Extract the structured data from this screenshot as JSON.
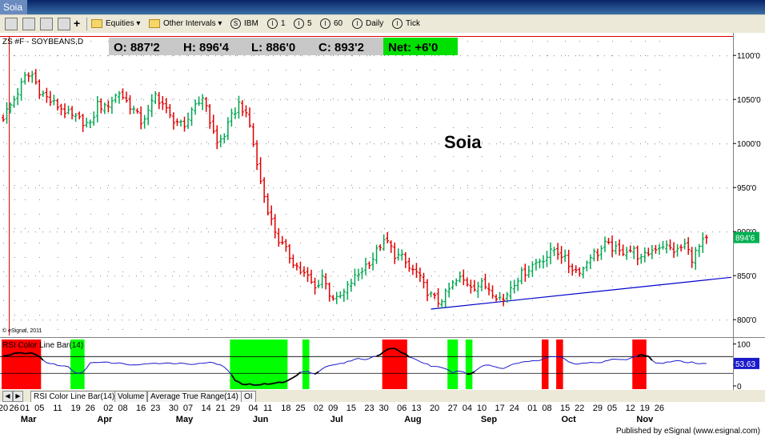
{
  "window": {
    "title": "Soia"
  },
  "toolbar": {
    "equities_label": "Equities",
    "other_intervals_label": "Other Intervals",
    "symbol_label": "IBM",
    "interval_1": "1",
    "interval_5": "5",
    "interval_60": "60",
    "daily_label": "Daily",
    "tick_label": "Tick",
    "symbol_icon_letter": "S",
    "interval_icon_letter": "I"
  },
  "chart_data": [
    {
      "type": "candlestick",
      "symbol_label": "ZS #F - SOYBEANS,D",
      "annotation": "Soia",
      "ohlc_box": {
        "open": "O:  887'2",
        "high": "H:  896'4",
        "low": "L:  886'0",
        "close": "C:  893'2",
        "net": "Net:  +6'0"
      },
      "last_price_label": "894'6",
      "copyright": "© eSignal, 2011",
      "y_ticks": [
        {
          "value": 1100,
          "label": "1100'0"
        },
        {
          "value": 1050,
          "label": "1050'0"
        },
        {
          "value": 1000,
          "label": "1000'0"
        },
        {
          "value": 950,
          "label": "950'0"
        },
        {
          "value": 900,
          "label": "900'0"
        },
        {
          "value": 850,
          "label": "850'0"
        },
        {
          "value": 800,
          "label": "800'0"
        }
      ],
      "ylim": [
        782,
        1122
      ],
      "grid": true,
      "trendline": {
        "from": {
          "bar": 118,
          "value": 812
        },
        "to": {
          "bar": 168,
          "value": 849
        }
      },
      "anchors": [
        [
          0,
          1030
        ],
        [
          3,
          1050
        ],
        [
          6,
          1075
        ],
        [
          8,
          1078
        ],
        [
          10,
          1060
        ],
        [
          13,
          1048
        ],
        [
          16,
          1040
        ],
        [
          19,
          1030
        ],
        [
          22,
          1025
        ],
        [
          24,
          1020
        ],
        [
          26,
          1045
        ],
        [
          28,
          1040
        ],
        [
          30,
          1050
        ],
        [
          32,
          1058
        ],
        [
          34,
          1048
        ],
        [
          36,
          1038
        ],
        [
          38,
          1025
        ],
        [
          40,
          1035
        ],
        [
          42,
          1055
        ],
        [
          44,
          1045
        ],
        [
          46,
          1030
        ],
        [
          48,
          1025
        ],
        [
          50,
          1015
        ],
        [
          52,
          1040
        ],
        [
          54,
          1050
        ],
        [
          56,
          1045
        ],
        [
          57,
          1025
        ],
        [
          59,
          1000
        ],
        [
          61,
          1010
        ],
        [
          63,
          1030
        ],
        [
          65,
          1045
        ],
        [
          66,
          1040
        ],
        [
          68,
          1020
        ],
        [
          69,
          1000
        ],
        [
          70,
          975
        ],
        [
          72,
          940
        ],
        [
          74,
          912
        ],
        [
          76,
          890
        ],
        [
          78,
          878
        ],
        [
          80,
          866
        ],
        [
          82,
          855
        ],
        [
          84,
          848
        ],
        [
          86,
          835
        ],
        [
          88,
          850
        ],
        [
          90,
          830
        ],
        [
          92,
          822
        ],
        [
          94,
          830
        ],
        [
          96,
          843
        ],
        [
          98,
          852
        ],
        [
          100,
          862
        ],
        [
          102,
          870
        ],
        [
          104,
          885
        ],
        [
          106,
          888
        ],
        [
          108,
          874
        ],
        [
          110,
          870
        ],
        [
          112,
          858
        ],
        [
          114,
          853
        ],
        [
          116,
          838
        ],
        [
          118,
          827
        ],
        [
          120,
          820
        ],
        [
          122,
          828
        ],
        [
          124,
          840
        ],
        [
          126,
          846
        ],
        [
          128,
          842
        ],
        [
          130,
          838
        ],
        [
          132,
          840
        ],
        [
          134,
          836
        ],
        [
          136,
          828
        ],
        [
          138,
          822
        ],
        [
          140,
          838
        ],
        [
          142,
          848
        ],
        [
          144,
          855
        ],
        [
          146,
          862
        ],
        [
          148,
          868
        ],
        [
          150,
          872
        ],
        [
          152,
          880
        ],
        [
          154,
          874
        ],
        [
          156,
          862
        ],
        [
          158,
          856
        ],
        [
          160,
          858
        ],
        [
          162,
          874
        ],
        [
          164,
          876
        ],
        [
          166,
          885
        ],
        [
          168,
          882
        ],
        [
          170,
          876
        ],
        [
          172,
          880
        ],
        [
          174,
          878
        ],
        [
          176,
          868
        ],
        [
          178,
          876
        ],
        [
          180,
          882
        ],
        [
          182,
          885
        ],
        [
          184,
          880
        ],
        [
          186,
          878
        ],
        [
          188,
          885
        ],
        [
          190,
          870
        ],
        [
          192,
          882
        ],
        [
          194,
          893
        ]
      ]
    },
    {
      "type": "line",
      "title": "RSI Color Line Bar(14)",
      "ylim": [
        0,
        105
      ],
      "y_ticks": [
        {
          "value": 100,
          "label": "100"
        },
        {
          "value": 50,
          "label": "50"
        },
        {
          "value": 0,
          "label": "0"
        }
      ],
      "levels": [
        70,
        30
      ],
      "last_value_label": "53.63",
      "colored_zones": [
        {
          "from": 0,
          "to": 10,
          "color": "#ff0000"
        },
        {
          "from": 19,
          "to": 22,
          "color": "#00ff00"
        },
        {
          "from": 63,
          "to": 78,
          "color": "#00ff00"
        },
        {
          "from": 83,
          "to": 84,
          "color": "#00ff00"
        },
        {
          "from": 105,
          "to": 111,
          "color": "#ff0000"
        },
        {
          "from": 123,
          "to": 125,
          "color": "#00ff00"
        },
        {
          "from": 128,
          "to": 129,
          "color": "#00ff00"
        },
        {
          "from": 149,
          "to": 150,
          "color": "#ff0000"
        },
        {
          "from": 153,
          "to": 154,
          "color": "#ff0000"
        },
        {
          "from": 174,
          "to": 177,
          "color": "#ff0000"
        }
      ],
      "anchors": [
        [
          0,
          72
        ],
        [
          4,
          78
        ],
        [
          8,
          78
        ],
        [
          10,
          70
        ],
        [
          12,
          55
        ],
        [
          14,
          52
        ],
        [
          16,
          48
        ],
        [
          18,
          45
        ],
        [
          20,
          30
        ],
        [
          22,
          33
        ],
        [
          24,
          55
        ],
        [
          28,
          56
        ],
        [
          32,
          54
        ],
        [
          36,
          50
        ],
        [
          40,
          52
        ],
        [
          44,
          55
        ],
        [
          48,
          54
        ],
        [
          52,
          52
        ],
        [
          56,
          56
        ],
        [
          58,
          54
        ],
        [
          60,
          50
        ],
        [
          62,
          38
        ],
        [
          64,
          12
        ],
        [
          66,
          5
        ],
        [
          70,
          3
        ],
        [
          74,
          6
        ],
        [
          76,
          8
        ],
        [
          78,
          10
        ],
        [
          80,
          20
        ],
        [
          82,
          32
        ],
        [
          84,
          36
        ],
        [
          86,
          28
        ],
        [
          88,
          42
        ],
        [
          90,
          48
        ],
        [
          92,
          52
        ],
        [
          94,
          55
        ],
        [
          96,
          60
        ],
        [
          98,
          66
        ],
        [
          100,
          63
        ],
        [
          102,
          70
        ],
        [
          104,
          75
        ],
        [
          106,
          86
        ],
        [
          108,
          90
        ],
        [
          110,
          80
        ],
        [
          112,
          70
        ],
        [
          114,
          62
        ],
        [
          116,
          55
        ],
        [
          118,
          48
        ],
        [
          120,
          45
        ],
        [
          122,
          40
        ],
        [
          124,
          32
        ],
        [
          126,
          36
        ],
        [
          128,
          28
        ],
        [
          130,
          33
        ],
        [
          132,
          48
        ],
        [
          134,
          50
        ],
        [
          136,
          45
        ],
        [
          138,
          42
        ],
        [
          140,
          50
        ],
        [
          142,
          55
        ],
        [
          144,
          58
        ],
        [
          146,
          60
        ],
        [
          148,
          62
        ],
        [
          150,
          68
        ],
        [
          152,
          70
        ],
        [
          154,
          68
        ],
        [
          156,
          58
        ],
        [
          158,
          52
        ],
        [
          160,
          55
        ],
        [
          162,
          55
        ],
        [
          164,
          55
        ],
        [
          166,
          58
        ],
        [
          168,
          64
        ],
        [
          170,
          62
        ],
        [
          172,
          64
        ],
        [
          174,
          70
        ],
        [
          176,
          74
        ],
        [
          178,
          70
        ],
        [
          180,
          55
        ],
        [
          182,
          55
        ],
        [
          184,
          58
        ],
        [
          186,
          60
        ],
        [
          188,
          56
        ],
        [
          190,
          56
        ],
        [
          192,
          52
        ],
        [
          194,
          54
        ]
      ]
    }
  ],
  "x_axis": {
    "day_labels": [
      {
        "bar": 0,
        "label": "20"
      },
      {
        "bar": 3,
        "label": "26"
      },
      {
        "bar": 6,
        "label": "01"
      },
      {
        "bar": 10,
        "label": "05"
      },
      {
        "bar": 15,
        "label": "11"
      },
      {
        "bar": 20,
        "label": "19"
      },
      {
        "bar": 24,
        "label": "26"
      },
      {
        "bar": 29,
        "label": "02"
      },
      {
        "bar": 33,
        "label": "08"
      },
      {
        "bar": 38,
        "label": "16"
      },
      {
        "bar": 42,
        "label": "23"
      },
      {
        "bar": 47,
        "label": "30"
      },
      {
        "bar": 51,
        "label": "07"
      },
      {
        "bar": 56,
        "label": "14"
      },
      {
        "bar": 60,
        "label": "21"
      },
      {
        "bar": 64,
        "label": "29"
      },
      {
        "bar": 69,
        "label": "04"
      },
      {
        "bar": 73,
        "label": "11"
      },
      {
        "bar": 78,
        "label": "18"
      },
      {
        "bar": 82,
        "label": "25"
      },
      {
        "bar": 87,
        "label": "02"
      },
      {
        "bar": 91,
        "label": "09"
      },
      {
        "bar": 96,
        "label": "15"
      },
      {
        "bar": 101,
        "label": "23"
      },
      {
        "bar": 105,
        "label": "30"
      },
      {
        "bar": 110,
        "label": "06"
      },
      {
        "bar": 114,
        "label": "13"
      },
      {
        "bar": 119,
        "label": "20"
      },
      {
        "bar": 124,
        "label": "27"
      },
      {
        "bar": 128,
        "label": "04"
      },
      {
        "bar": 132,
        "label": "10"
      },
      {
        "bar": 137,
        "label": "17"
      },
      {
        "bar": 141,
        "label": "24"
      },
      {
        "bar": 146,
        "label": "01"
      },
      {
        "bar": 150,
        "label": "08"
      },
      {
        "bar": 155,
        "label": "15"
      },
      {
        "bar": 159,
        "label": "22"
      },
      {
        "bar": 164,
        "label": "29"
      },
      {
        "bar": 168,
        "label": "05"
      },
      {
        "bar": 173,
        "label": "12"
      },
      {
        "bar": 177,
        "label": "19"
      },
      {
        "bar": 181,
        "label": "26"
      }
    ],
    "month_labels": [
      {
        "bar": 7,
        "label": "Mar"
      },
      {
        "bar": 28,
        "label": "Apr"
      },
      {
        "bar": 50,
        "label": "May"
      },
      {
        "bar": 71,
        "label": "Jun"
      },
      {
        "bar": 92,
        "label": "Jul"
      },
      {
        "bar": 113,
        "label": "Aug"
      },
      {
        "bar": 134,
        "label": "Sep"
      },
      {
        "bar": 156,
        "label": "Oct"
      },
      {
        "bar": 177,
        "label": "Nov"
      }
    ]
  },
  "tabs": [
    {
      "label": "RSI Color Line Bar(14)"
    },
    {
      "label": "Volume"
    },
    {
      "label": "Average True Range(14)"
    },
    {
      "label": "OI"
    }
  ],
  "footer": {
    "text": "Published by eSignal (www.esignal.com)"
  },
  "colors": {
    "up": "#00a651",
    "down": "#e00000",
    "trendline": "#0000cc",
    "rsi_line": "#1a1acc",
    "net_box": "#00e000",
    "ohlc_box": "#c8c8c8"
  }
}
